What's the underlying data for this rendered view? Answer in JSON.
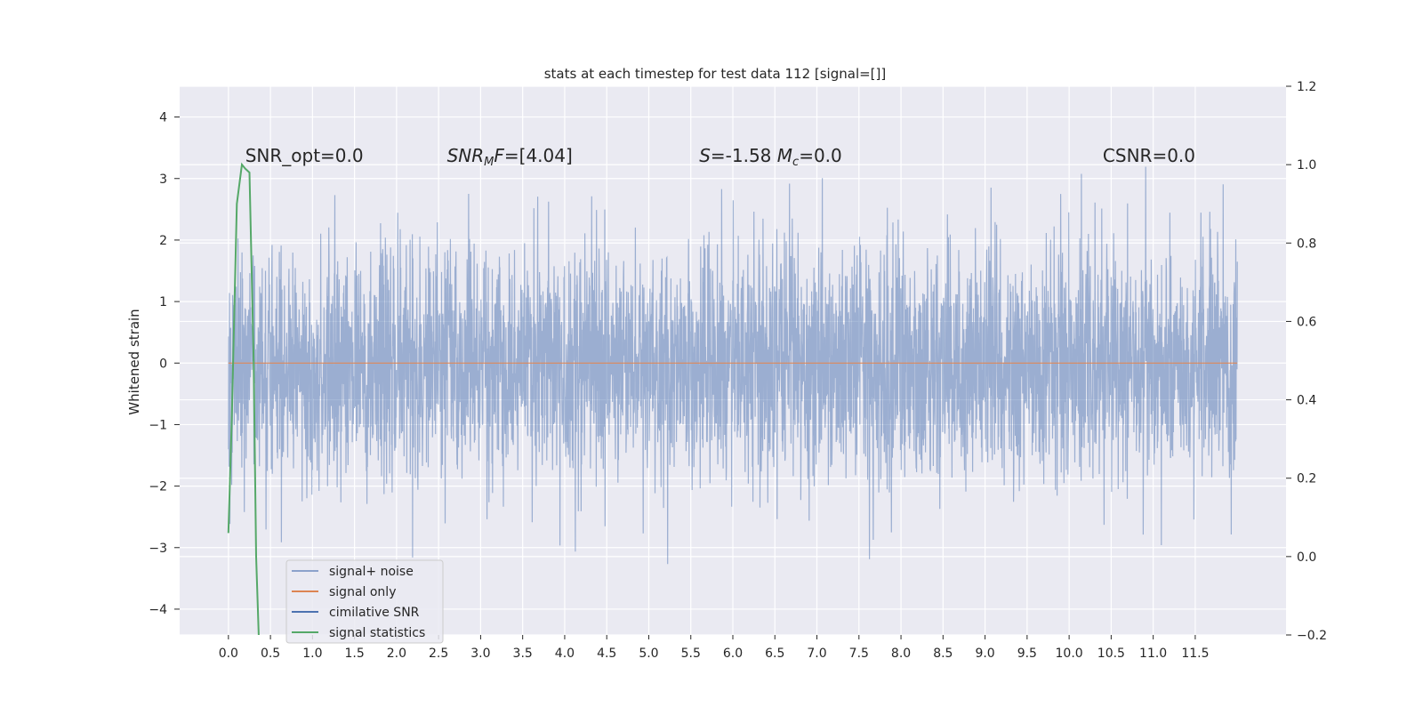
{
  "chart_data": {
    "type": "line",
    "title": "stats at each timestep for test data 112 [signal=[]]",
    "xlabel": "",
    "ylabel": "Whitened strain",
    "xlim": [
      -0.58,
      12.58
    ],
    "ylim": [
      -4.42,
      4.5
    ],
    "y2lim": [
      -0.2,
      1.2
    ],
    "x_ticks": [
      "0.0",
      "0.5",
      "1.0",
      "1.5",
      "2.0",
      "2.5",
      "3.0",
      "3.5",
      "4.0",
      "4.5",
      "5.0",
      "5.5",
      "6.0",
      "6.5",
      "7.0",
      "7.5",
      "8.0",
      "8.5",
      "9.0",
      "9.5",
      "10.0",
      "10.5",
      "11.0",
      "11.5"
    ],
    "y_ticks": [
      "4",
      "3",
      "2",
      "1",
      "0",
      "−1",
      "−2",
      "−3",
      "−4"
    ],
    "y_tick_values": [
      4,
      3,
      2,
      1,
      0,
      -1,
      -2,
      -3,
      -4
    ],
    "y2_ticks": [
      "1.2",
      "1.0",
      "0.8",
      "0.6",
      "0.4",
      "0.2",
      "0.0",
      "−0.2"
    ],
    "y2_tick_values": [
      1.2,
      1.0,
      0.8,
      0.6,
      0.4,
      0.2,
      0.0,
      -0.2
    ],
    "grid": true,
    "legend_position": "lower-left",
    "series": [
      {
        "name": "signal+ noise",
        "color": "#4c72b0",
        "kind": "noise",
        "x_range": [
          0.0,
          12.0
        ],
        "sigma": 0.95
      },
      {
        "name": "signal only",
        "color": "#dd8452",
        "x": [
          0.0,
          12.0
        ],
        "y": [
          0.0,
          0.0
        ]
      },
      {
        "name": "cimilative SNR",
        "color": "#4c72b0",
        "x": [],
        "y": []
      },
      {
        "name": "signal statistics",
        "color": "#55a868",
        "axis": "right",
        "x": [
          0.0,
          0.04,
          0.1,
          0.16,
          0.2,
          0.25,
          0.3,
          0.33,
          0.36
        ],
        "y": [
          0.06,
          0.35,
          0.9,
          1.0,
          0.99,
          0.98,
          0.5,
          0.0,
          -0.2
        ]
      }
    ],
    "annotations": [
      {
        "parts": [
          {
            "t": "SNR_opt=0.0"
          }
        ],
        "x": 0.2,
        "y": 3.3
      },
      {
        "parts": [
          {
            "t": "SNR",
            "i": true
          },
          {
            "t": "M",
            "i": true,
            "sub": true
          },
          {
            "t": "F",
            "i": true
          },
          {
            "t": "=[4.04]"
          }
        ],
        "x": 2.6,
        "y": 3.3
      },
      {
        "parts": [
          {
            "t": "S",
            "i": true
          },
          {
            "t": "=-1.58  "
          },
          {
            "t": "M",
            "i": true
          },
          {
            "t": "c",
            "i": true,
            "sub": true
          },
          {
            "t": "=0.0"
          }
        ],
        "x": 5.6,
        "y": 3.3
      },
      {
        "parts": [
          {
            "t": "CSNR=0.0"
          }
        ],
        "x": 10.4,
        "y": 3.3
      }
    ]
  }
}
